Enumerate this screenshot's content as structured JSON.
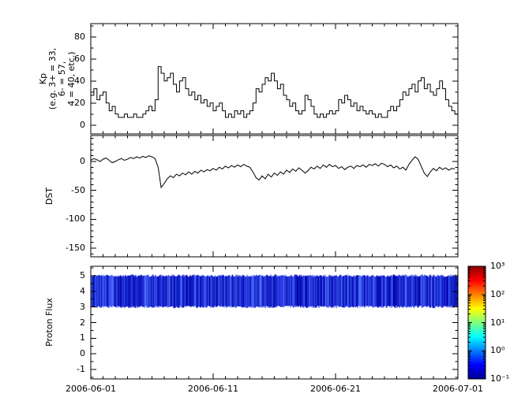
{
  "figure": {
    "background": "#ffffff"
  },
  "chart_data": {
    "type": "line",
    "title": "",
    "x_axis": {
      "range_days": [
        0,
        30
      ],
      "major_tick_days": [
        0,
        10,
        20,
        30
      ],
      "minor_step_days": 1,
      "tick_labels": [
        "2006-06-01",
        "2006-06-11",
        "2006-06-21",
        "2006-07-01"
      ]
    },
    "panels": [
      {
        "id": "kp",
        "ylabel_lines": [
          "Kp",
          "(e.g. 3+ = 33,",
          "6- = 57,",
          "4 = 40, etc.)"
        ],
        "ylim": [
          -8,
          92
        ],
        "yticks": [
          0,
          20,
          40,
          60,
          80
        ],
        "yminor_step": 10,
        "line_color": "#000000",
        "step": true,
        "sample_interval_days": 0.25,
        "values": [
          27,
          33,
          23,
          27,
          30,
          20,
          13,
          17,
          10,
          7,
          7,
          10,
          7,
          7,
          10,
          7,
          7,
          10,
          13,
          17,
          13,
          23,
          53,
          47,
          40,
          43,
          47,
          37,
          30,
          40,
          43,
          33,
          27,
          30,
          23,
          27,
          20,
          23,
          17,
          20,
          13,
          17,
          20,
          13,
          7,
          10,
          7,
          13,
          10,
          13,
          7,
          10,
          13,
          20,
          33,
          30,
          37,
          43,
          40,
          47,
          40,
          33,
          37,
          27,
          23,
          17,
          20,
          13,
          10,
          13,
          27,
          23,
          17,
          10,
          7,
          10,
          7,
          10,
          13,
          10,
          13,
          23,
          20,
          27,
          23,
          17,
          20,
          13,
          17,
          13,
          10,
          13,
          10,
          7,
          10,
          7,
          7,
          13,
          17,
          13,
          17,
          23,
          30,
          27,
          33,
          37,
          30,
          40,
          43,
          33,
          37,
          30,
          27,
          33,
          40,
          33,
          23,
          17,
          13,
          10
        ]
      },
      {
        "id": "dst",
        "ylabel_lines": [
          "DST"
        ],
        "ylim": [
          -165,
          45
        ],
        "yticks": [
          0,
          -50,
          -100,
          -150
        ],
        "yminor_step": 10,
        "line_color": "#000000",
        "step": false,
        "sample_interval_days": 0.25,
        "values": [
          2,
          5,
          3,
          0,
          4,
          6,
          2,
          -2,
          0,
          3,
          5,
          2,
          4,
          7,
          5,
          8,
          6,
          9,
          7,
          10,
          8,
          5,
          -10,
          -45,
          -38,
          -30,
          -25,
          -28,
          -22,
          -25,
          -20,
          -23,
          -18,
          -22,
          -17,
          -20,
          -15,
          -18,
          -14,
          -16,
          -12,
          -15,
          -10,
          -13,
          -8,
          -11,
          -7,
          -10,
          -6,
          -9,
          -5,
          -8,
          -10,
          -18,
          -28,
          -32,
          -25,
          -30,
          -22,
          -27,
          -20,
          -24,
          -18,
          -22,
          -15,
          -19,
          -13,
          -17,
          -11,
          -15,
          -20,
          -16,
          -10,
          -13,
          -8,
          -12,
          -6,
          -10,
          -5,
          -9,
          -7,
          -12,
          -9,
          -14,
          -10,
          -8,
          -12,
          -7,
          -9,
          -6,
          -10,
          -5,
          -7,
          -4,
          -8,
          -3,
          -5,
          -9,
          -6,
          -11,
          -8,
          -13,
          -10,
          -15,
          -5,
          2,
          8,
          4,
          -8,
          -20,
          -26,
          -18,
          -12,
          -16,
          -10,
          -14,
          -11,
          -15,
          -12,
          -13
        ]
      },
      {
        "id": "proton",
        "ylabel_lines": [
          "Proton Flux"
        ],
        "ylim": [
          -1.6,
          5.6
        ],
        "yticks": [
          -1,
          0,
          1,
          2,
          3,
          4,
          5
        ],
        "yminor_step": 0.5,
        "band": {
          "ymin": 3,
          "ymax": 5,
          "shades": [
            "#0000a8",
            "#1520cc",
            "#2438e0",
            "#3a55f0",
            "#0d18b8",
            "#4a6af8"
          ]
        }
      }
    ],
    "colorbar": {
      "scale": "log",
      "tick_labels": [
        "10³",
        "10²",
        "10¹",
        "10⁰",
        "10⁻¹"
      ],
      "tick_values": [
        1000,
        100,
        10,
        1,
        0.1
      ],
      "gradient_stops": [
        {
          "pos": 0.0,
          "color": "#000090"
        },
        {
          "pos": 0.125,
          "color": "#0000ff"
        },
        {
          "pos": 0.375,
          "color": "#00ffff"
        },
        {
          "pos": 0.625,
          "color": "#ffff00"
        },
        {
          "pos": 0.875,
          "color": "#ff0000"
        },
        {
          "pos": 1.0,
          "color": "#900000"
        }
      ]
    }
  }
}
